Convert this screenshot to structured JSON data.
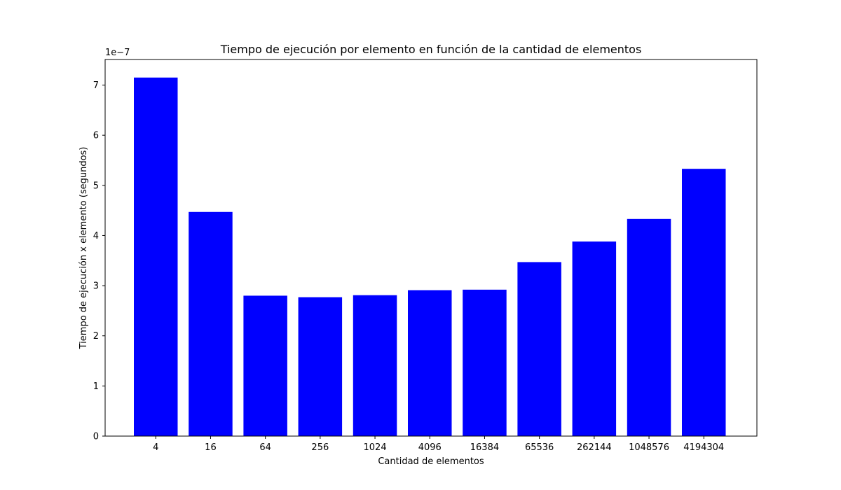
{
  "chart_data": {
    "type": "bar",
    "title": "Tiempo de ejecución por elemento en función de la cantidad de elementos",
    "xlabel": "Cantidad de elementos",
    "ylabel": "Tiempo de ejecución x elemento (segundos)",
    "y_scale_label": "1e−7",
    "y_scale_factor": 1e-07,
    "categories": [
      "4",
      "16",
      "64",
      "256",
      "1024",
      "4096",
      "16384",
      "65536",
      "262144",
      "1048576",
      "4194304"
    ],
    "values": [
      7.15e-07,
      4.47e-07,
      2.8e-07,
      2.77e-07,
      2.81e-07,
      2.91e-07,
      2.92e-07,
      3.47e-07,
      3.88e-07,
      4.33e-07,
      5.33e-07
    ],
    "yticks": [
      0,
      1,
      2,
      3,
      4,
      5,
      6,
      7
    ],
    "ylim": [
      0,
      7.51e-07
    ],
    "bar_color": "#0000ff",
    "grid": false,
    "legend": "none"
  }
}
